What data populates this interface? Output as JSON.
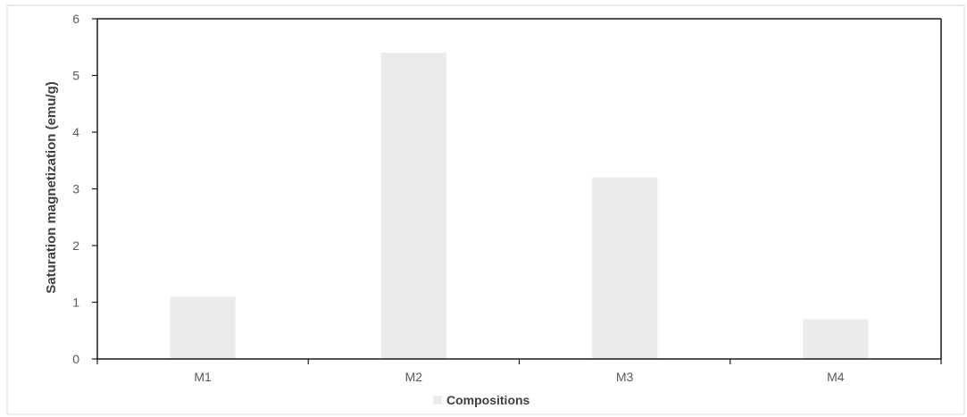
{
  "chart_data": {
    "type": "bar",
    "categories": [
      "M1",
      "M2",
      "M3",
      "M4"
    ],
    "series": [
      {
        "name": "Compositions",
        "values": [
          1.1,
          5.4,
          3.2,
          0.7
        ],
        "color": "#ebebeb"
      }
    ],
    "title": "",
    "xlabel": "",
    "ylabel": "Saturation magnetization (emu/g)",
    "ylim": [
      0,
      6
    ],
    "yticks": [
      "0",
      "1",
      "2",
      "3",
      "4",
      "5",
      "6"
    ],
    "grid": false,
    "legend_position": "bottom"
  },
  "colors": {
    "bar": "#ebebeb",
    "axis": "#1a1a1a",
    "outer_border": "#d9d9d9"
  }
}
